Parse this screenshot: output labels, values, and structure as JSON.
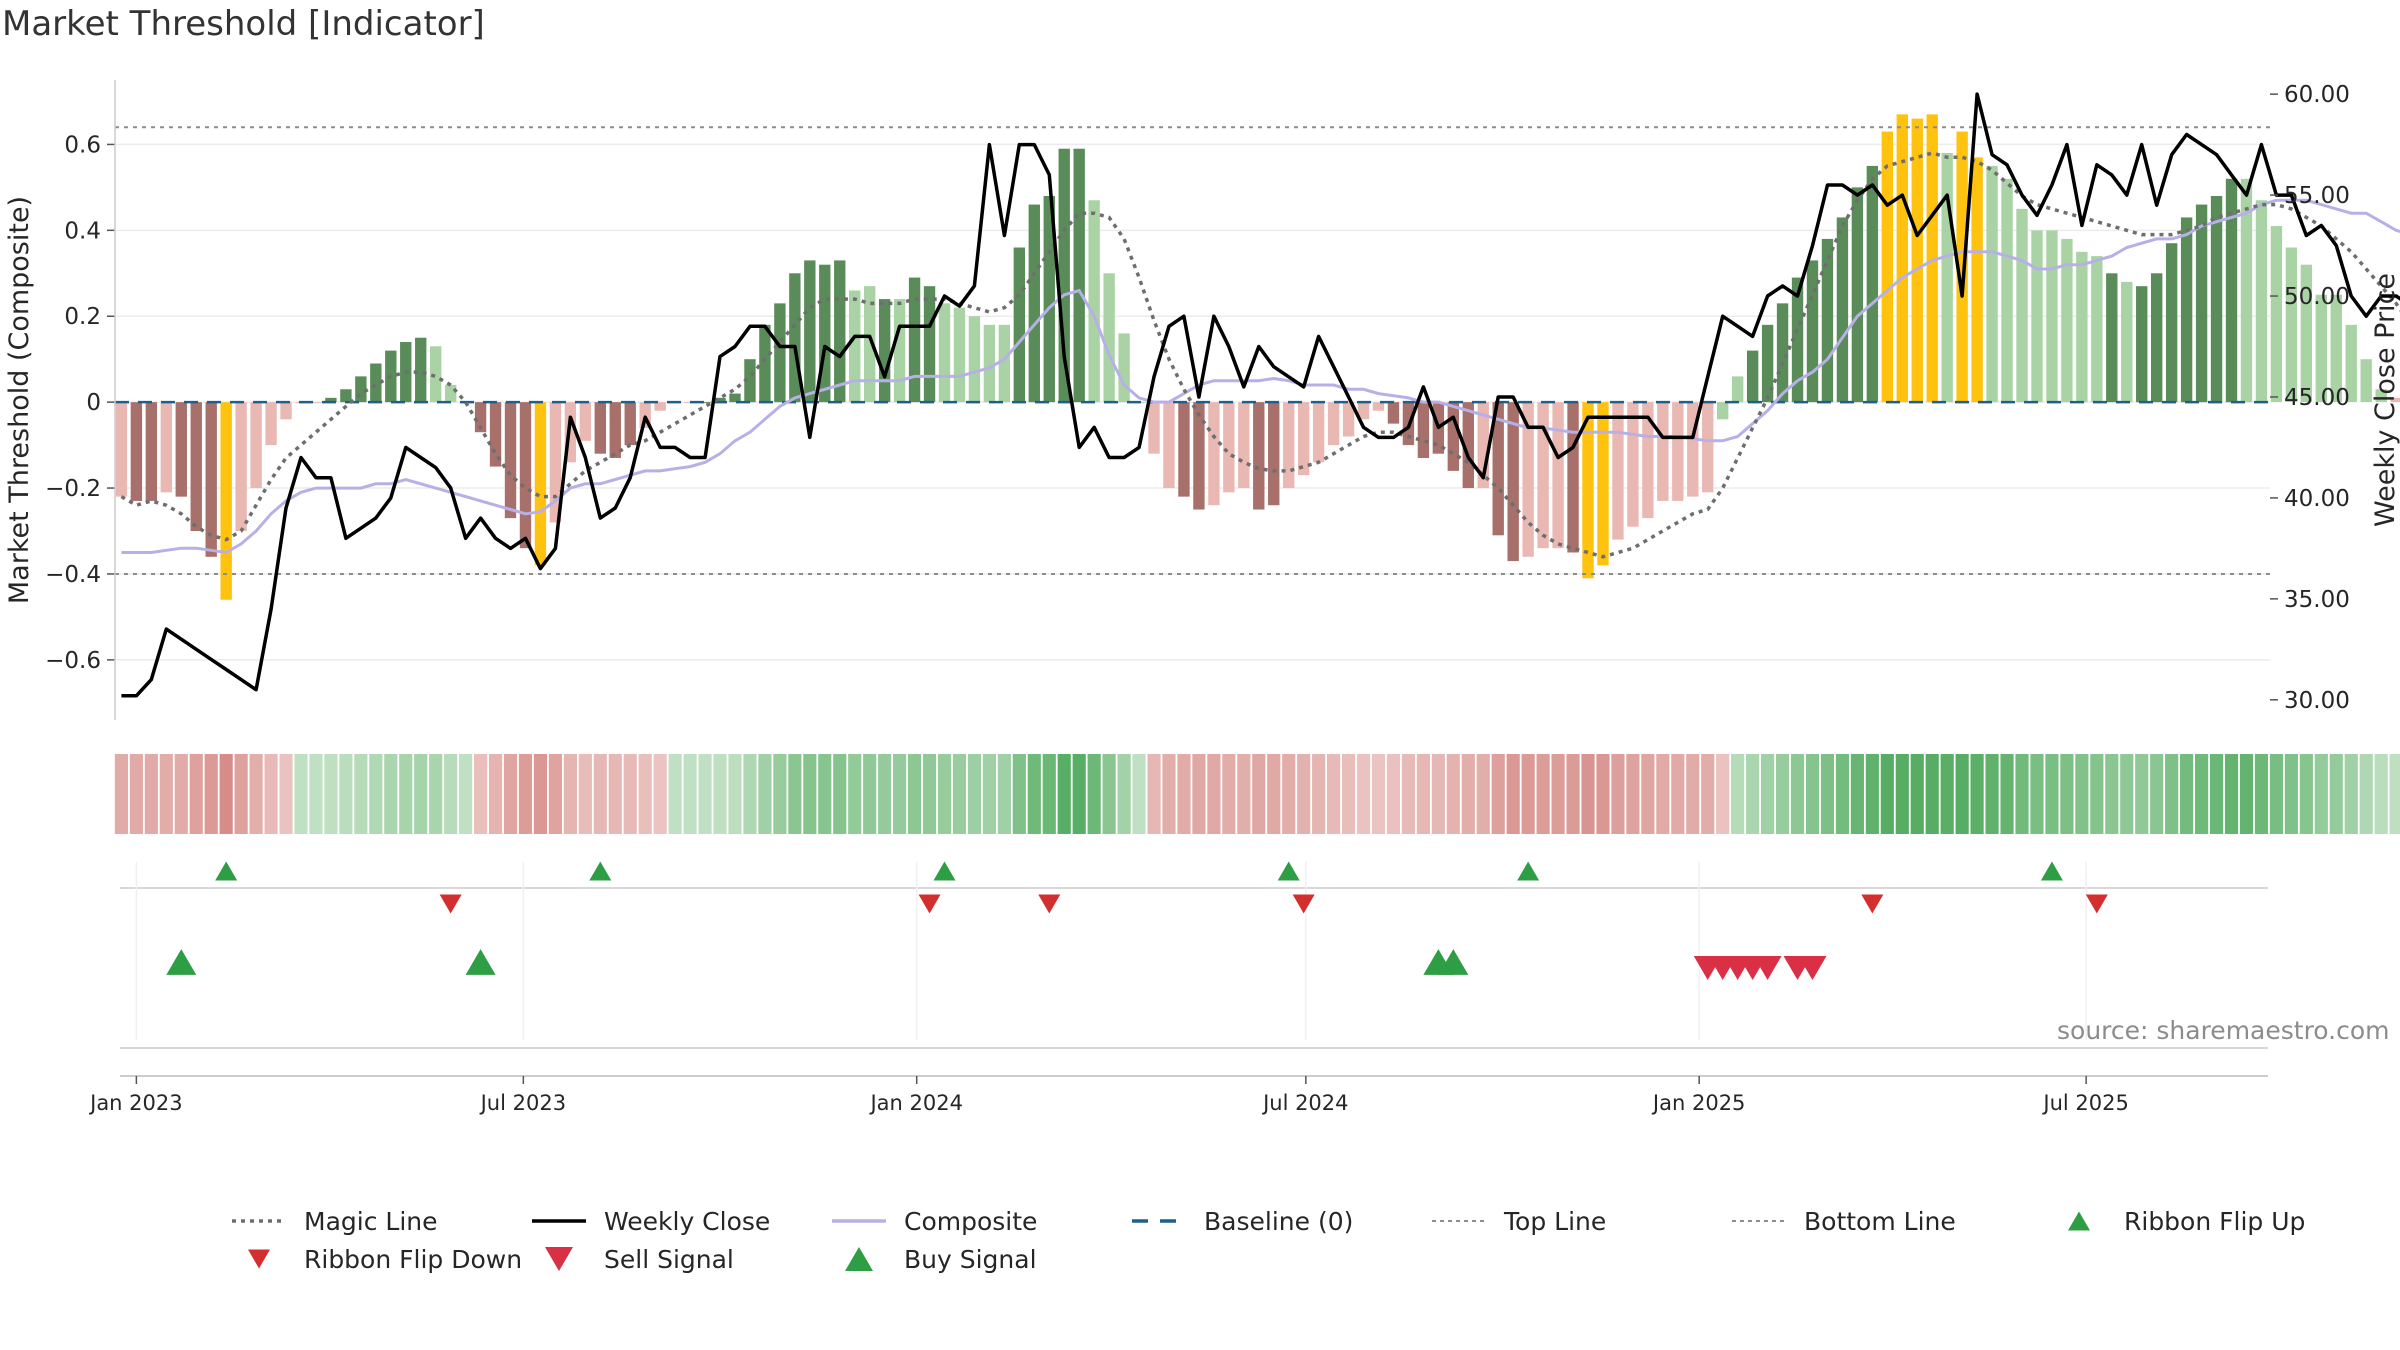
{
  "title": "Market Threshold [Indicator]",
  "source": "source: sharemaestro.com",
  "colors": {
    "magic": "#6e6e6e",
    "close": "#000000",
    "composite": "#b7b0e6",
    "baseline": "#1f5f8b",
    "threshold": "#8c8c8c",
    "bar_dark_green": "#5a8c5a",
    "bar_light_green": "#a9d3a4",
    "bar_dark_red": "#a8706a",
    "bar_light_red": "#eab8b3",
    "bar_yellow": "#ffc20e",
    "flip_up": "#2e9e44",
    "flip_down": "#d32f2f",
    "sell": "#d93045",
    "buy": "#2e9e44"
  },
  "chart_data": {
    "type": "bar",
    "title": "Market Threshold [Indicator]",
    "ylabel": "Market Threshold (Composite)",
    "y2label": "Weekly Close Price",
    "ylim": [
      -0.74,
      0.75
    ],
    "y2lim": [
      29,
      60.7
    ],
    "yticks": [
      -0.6,
      -0.4,
      -0.2,
      0,
      0.2,
      0.4,
      0.6
    ],
    "ytick_labels": [
      "−0.6",
      "−0.4",
      "−0.2",
      "0",
      "0.2",
      "0.4",
      "0.6"
    ],
    "y2ticks": [
      30,
      35,
      40,
      45,
      50,
      55,
      60
    ],
    "y2tick_labels": [
      "30.00",
      "35.00",
      "40.00",
      "45.00",
      "50.00",
      "55.00",
      "60.00"
    ],
    "top_line": 0.64,
    "bottom_line": -0.4,
    "xlim": [
      "2022-12-22",
      "2025-09-25"
    ],
    "xticks": [
      "2023-01-01",
      "2023-07-01",
      "2024-01-01",
      "2024-07-01",
      "2025-01-01",
      "2025-07-01"
    ],
    "xtick_labels": [
      "Jan 2023",
      "Jul 2023",
      "Jan 2024",
      "Jul 2024",
      "Jan 2025",
      "Jul 2025"
    ],
    "week_start": "2022-12-25",
    "composite_bars": [
      -0.22,
      -0.23,
      -0.23,
      -0.21,
      -0.22,
      -0.3,
      -0.36,
      -0.46,
      -0.3,
      -0.2,
      -0.1,
      -0.04,
      0,
      0,
      0.01,
      0.03,
      0.06,
      0.09,
      0.12,
      0.14,
      0.15,
      0.13,
      0.04,
      0,
      -0.07,
      -0.15,
      -0.27,
      -0.34,
      -0.38,
      -0.28,
      -0.14,
      -0.09,
      -0.12,
      -0.13,
      -0.1,
      -0.06,
      -0.02,
      0,
      0,
      0,
      0.01,
      0.02,
      0.1,
      0.18,
      0.23,
      0.3,
      0.33,
      0.32,
      0.33,
      0.26,
      0.27,
      0.24,
      0.24,
      0.29,
      0.27,
      0.23,
      0.22,
      0.2,
      0.18,
      0.18,
      0.36,
      0.46,
      0.48,
      0.59,
      0.59,
      0.47,
      0.3,
      0.16,
      0,
      -0.12,
      -0.2,
      -0.22,
      -0.25,
      -0.24,
      -0.21,
      -0.2,
      -0.25,
      -0.24,
      -0.2,
      -0.17,
      -0.14,
      -0.1,
      -0.08,
      -0.04,
      -0.02,
      -0.05,
      -0.1,
      -0.13,
      -0.12,
      -0.16,
      -0.2,
      -0.2,
      -0.31,
      -0.37,
      -0.36,
      -0.34,
      -0.34,
      -0.35,
      -0.41,
      -0.38,
      -0.32,
      -0.29,
      -0.27,
      -0.23,
      -0.23,
      -0.22,
      -0.21,
      -0.04,
      0.06,
      0.12,
      0.18,
      0.23,
      0.29,
      0.33,
      0.38,
      0.43,
      0.5,
      0.55,
      0.63,
      0.67,
      0.66,
      0.67,
      0.58,
      0.63,
      0.57,
      0.55,
      0.52,
      0.45,
      0.4,
      0.4,
      0.38,
      0.35,
      0.34,
      0.3,
      0.28,
      0.27,
      0.3,
      0.37,
      0.43,
      0.46,
      0.48,
      0.52,
      0.52,
      0.47,
      0.41,
      0.36,
      0.32,
      0.25,
      0.25,
      0.18,
      0.1,
      0.03,
      0.01,
      -0.06,
      -0.11,
      -0.16,
      -0.22
    ],
    "bar_tones": [
      "lr",
      "dr",
      "dr",
      "lr",
      "dr",
      "dr",
      "dr",
      "y",
      "lr",
      "lr",
      "lr",
      "lr",
      "lr",
      "lr",
      "dg",
      "dg",
      "dg",
      "dg",
      "dg",
      "dg",
      "dg",
      "lg",
      "lg",
      "lg",
      "dr",
      "dr",
      "dr",
      "dr",
      "y",
      "lr",
      "lr",
      "lr",
      "dr",
      "dr",
      "dr",
      "lr",
      "lr",
      "lr",
      "lr",
      "dg",
      "dg",
      "dg",
      "dg",
      "dg",
      "dg",
      "dg",
      "dg",
      "dg",
      "dg",
      "lg",
      "lg",
      "dg",
      "lg",
      "dg",
      "dg",
      "lg",
      "lg",
      "lg",
      "lg",
      "lg",
      "dg",
      "dg",
      "dg",
      "dg",
      "dg",
      "lg",
      "lg",
      "lg",
      "lg",
      "lr",
      "lr",
      "dr",
      "dr",
      "lr",
      "lr",
      "lr",
      "dr",
      "dr",
      "lr",
      "lr",
      "lr",
      "lr",
      "lr",
      "lr",
      "lr",
      "dr",
      "dr",
      "dr",
      "dr",
      "dr",
      "dr",
      "lr",
      "dr",
      "dr",
      "lr",
      "lr",
      "lr",
      "dr",
      "y",
      "y",
      "lr",
      "lr",
      "lr",
      "lr",
      "lr",
      "lr",
      "lr",
      "lg",
      "lg",
      "dg",
      "dg",
      "dg",
      "dg",
      "dg",
      "dg",
      "dg",
      "dg",
      "dg",
      "y",
      "y",
      "y",
      "y",
      "lg",
      "y",
      "y",
      "lg",
      "lg",
      "lg",
      "lg",
      "lg",
      "lg",
      "lg",
      "lg",
      "dg",
      "lg",
      "dg",
      "dg",
      "dg",
      "dg",
      "dg",
      "dg",
      "dg",
      "lg",
      "lg",
      "lg",
      "lg",
      "lg",
      "lg",
      "lg",
      "lg",
      "lg",
      "lg",
      "lr",
      "dr",
      "dr",
      "dr"
    ],
    "weekly_close": [
      30.2,
      30.2,
      31,
      33.5,
      33,
      32.5,
      32,
      31.5,
      31,
      30.5,
      34.5,
      39.5,
      42,
      41,
      41,
      38,
      38.5,
      39,
      40,
      42.5,
      42,
      41.5,
      40.5,
      38,
      39,
      38,
      37.5,
      38,
      36.5,
      37.5,
      44,
      42,
      39,
      39.5,
      41,
      44,
      42.5,
      42.5,
      42,
      42,
      47,
      47.5,
      48.5,
      48.5,
      47.5,
      47.5,
      43,
      47.5,
      47,
      48,
      48,
      46,
      48.5,
      48.5,
      48.5,
      50,
      49.5,
      50.5,
      57.5,
      53,
      57.5,
      57.5,
      56,
      47,
      42.5,
      43.5,
      42,
      42,
      42.5,
      46,
      48.5,
      49,
      45,
      49,
      47.5,
      45.5,
      47.5,
      46.5,
      46,
      45.5,
      48,
      46.5,
      45,
      43.5,
      43,
      43,
      43.5,
      45.5,
      43.5,
      44,
      42,
      41,
      45,
      45,
      43.5,
      43.5,
      42,
      42.5,
      44,
      44,
      44,
      44,
      44,
      43,
      43,
      43,
      46,
      49,
      48.5,
      48,
      50,
      50.5,
      50,
      52.5,
      55.5,
      55.5,
      55,
      55.5,
      54.5,
      55,
      53,
      54,
      55,
      50,
      60,
      57,
      56.5,
      55,
      54,
      55.5,
      57.5,
      53.5,
      56.5,
      56,
      55,
      57.5,
      54.5,
      57,
      58,
      57.5,
      57,
      56,
      55,
      57.5,
      55,
      55,
      53,
      53.5,
      52.5,
      50,
      49,
      50,
      50,
      49.5
    ],
    "composite_line": [
      -0.35,
      -0.35,
      -0.35,
      -0.345,
      -0.34,
      -0.34,
      -0.345,
      -0.35,
      -0.33,
      -0.3,
      -0.26,
      -0.23,
      -0.21,
      -0.2,
      -0.2,
      -0.2,
      -0.2,
      -0.19,
      -0.19,
      -0.18,
      -0.19,
      -0.2,
      -0.21,
      -0.22,
      -0.23,
      -0.24,
      -0.25,
      -0.26,
      -0.255,
      -0.23,
      -0.2,
      -0.19,
      -0.19,
      -0.18,
      -0.17,
      -0.16,
      -0.16,
      -0.155,
      -0.15,
      -0.14,
      -0.12,
      -0.09,
      -0.07,
      -0.04,
      -0.01,
      0.01,
      0.02,
      0.03,
      0.04,
      0.05,
      0.05,
      0.05,
      0.05,
      0.06,
      0.06,
      0.06,
      0.06,
      0.07,
      0.08,
      0.1,
      0.14,
      0.18,
      0.22,
      0.25,
      0.26,
      0.2,
      0.11,
      0.04,
      0.01,
      0,
      0,
      0.02,
      0.04,
      0.05,
      0.05,
      0.05,
      0.05,
      0.055,
      0.05,
      0.04,
      0.04,
      0.04,
      0.03,
      0.03,
      0.02,
      0.015,
      0.01,
      0,
      0,
      -0.01,
      -0.02,
      -0.03,
      -0.04,
      -0.05,
      -0.06,
      -0.06,
      -0.065,
      -0.07,
      -0.07,
      -0.07,
      -0.07,
      -0.075,
      -0.08,
      -0.08,
      -0.08,
      -0.085,
      -0.09,
      -0.09,
      -0.08,
      -0.05,
      -0.02,
      0.02,
      0.05,
      0.07,
      0.1,
      0.15,
      0.2,
      0.23,
      0.26,
      0.29,
      0.31,
      0.33,
      0.34,
      0.35,
      0.35,
      0.35,
      0.34,
      0.33,
      0.31,
      0.31,
      0.32,
      0.32,
      0.33,
      0.34,
      0.36,
      0.37,
      0.38,
      0.38,
      0.39,
      0.41,
      0.42,
      0.43,
      0.44,
      0.46,
      0.47,
      0.47,
      0.47,
      0.46,
      0.45,
      0.44,
      0.44,
      0.42,
      0.4,
      0.39,
      0.38,
      0.36,
      0.33,
      0.31,
      0.3
    ],
    "magic_line": [
      -0.22,
      -0.24,
      -0.23,
      -0.24,
      -0.26,
      -0.29,
      -0.31,
      -0.32,
      -0.3,
      -0.24,
      -0.18,
      -0.13,
      -0.1,
      -0.07,
      -0.04,
      -0.01,
      0.02,
      0.04,
      0.06,
      0.07,
      0.07,
      0.06,
      0.04,
      0,
      -0.06,
      -0.12,
      -0.17,
      -0.2,
      -0.22,
      -0.22,
      -0.19,
      -0.16,
      -0.14,
      -0.12,
      -0.1,
      -0.09,
      -0.07,
      -0.05,
      -0.03,
      -0.01,
      0.01,
      0.03,
      0.06,
      0.1,
      0.14,
      0.18,
      0.22,
      0.24,
      0.24,
      0.24,
      0.23,
      0.23,
      0.23,
      0.24,
      0.24,
      0.24,
      0.23,
      0.22,
      0.21,
      0.22,
      0.25,
      0.3,
      0.35,
      0.4,
      0.44,
      0.44,
      0.43,
      0.38,
      0.29,
      0.19,
      0.1,
      0.03,
      -0.03,
      -0.08,
      -0.12,
      -0.14,
      -0.155,
      -0.16,
      -0.16,
      -0.15,
      -0.14,
      -0.12,
      -0.1,
      -0.08,
      -0.07,
      -0.07,
      -0.08,
      -0.09,
      -0.1,
      -0.12,
      -0.14,
      -0.17,
      -0.2,
      -0.24,
      -0.28,
      -0.31,
      -0.33,
      -0.34,
      -0.35,
      -0.36,
      -0.35,
      -0.34,
      -0.32,
      -0.3,
      -0.28,
      -0.26,
      -0.25,
      -0.2,
      -0.13,
      -0.06,
      0.01,
      0.09,
      0.17,
      0.25,
      0.33,
      0.41,
      0.47,
      0.52,
      0.55,
      0.56,
      0.57,
      0.58,
      0.57,
      0.57,
      0.56,
      0.54,
      0.51,
      0.48,
      0.46,
      0.45,
      0.44,
      0.43,
      0.42,
      0.41,
      0.4,
      0.39,
      0.39,
      0.39,
      0.4,
      0.41,
      0.43,
      0.44,
      0.45,
      0.46,
      0.46,
      0.45,
      0.43,
      0.41,
      0.38,
      0.35,
      0.31,
      0.27,
      0.23,
      0.18,
      0.13,
      0.08,
      0.04,
      0.01,
      0
    ],
    "ribbon_tones": [
      -0.25,
      -0.28,
      -0.28,
      -0.3,
      -0.35,
      -0.38,
      -0.4,
      -0.5,
      -0.45,
      -0.4,
      -0.5,
      -0.55,
      -0.55,
      -0.5,
      -0.55,
      -0.55,
      -0.55,
      -0.55,
      -0.55,
      -0.55,
      -0.55,
      -0.55,
      -0.5,
      -0.5,
      -0.5,
      -0.5,
      -0.5,
      -0.5,
      -0.5,
      -0.5,
      -0.35,
      -0.4,
      -0.45,
      -0.4,
      -0.4,
      -0.45,
      -0.45,
      -0.4,
      -0.4,
      -0.4,
      -0.3,
      -0.4,
      -0.45,
      -0.45,
      -0.45,
      -0.45,
      -0.45,
      -0.45,
      -0.45,
      -0.45,
      -0.45,
      -0.45,
      -0.45,
      -0.45,
      -0.45,
      -0.45,
      -0.45,
      -0.45,
      -0.45,
      -0.45,
      -0.45,
      -0.45,
      -0.45,
      -0.45,
      -0.45,
      -0.45,
      -0.45,
      -0.45,
      -0.45,
      -0.45,
      -0.45,
      -0.45,
      -0.45,
      -0.45,
      -0.45,
      -0.45,
      -0.45,
      -0.45,
      -0.45,
      -0.45,
      -0.45,
      -0.45,
      -0.45,
      -0.45,
      -0.45,
      -0.45,
      -0.45,
      -0.45,
      -0.45,
      -0.45,
      -0.45,
      -0.45,
      -0.45,
      -0.45,
      -0.45,
      -0.45,
      -0.45,
      -0.45,
      -0.45,
      -0.45,
      -0.45,
      -0.45,
      -0.45,
      -0.45,
      -0.45,
      -0.45,
      -0.45,
      -0.45,
      -0.45,
      -0.45,
      -0.45,
      -0.45,
      -0.45,
      -0.45,
      -0.45,
      -0.45,
      -0.45,
      -0.45,
      -0.45,
      -0.45,
      -0.45,
      -0.45,
      -0.45,
      -0.45,
      -0.45,
      -0.45,
      -0.45,
      -0.45,
      -0.45,
      -0.45,
      -0.45,
      -0.45,
      -0.45,
      -0.45,
      -0.45,
      -0.45,
      -0.45,
      -0.45,
      -0.45,
      -0.45,
      -0.45,
      -0.45,
      -0.45,
      -0.45,
      -0.45,
      -0.45,
      -0.45,
      -0.45,
      -0.45,
      -0.45,
      -0.45,
      -0.45,
      -0.45,
      -0.45,
      -0.45,
      -0.45,
      -0.45,
      -0.45,
      -0.45,
      -0.45,
      -0.45,
      -0.45
    ],
    "ribbon_flip_up": [
      "2023-02-12",
      "2023-08-06",
      "2024-01-14",
      "2024-06-23",
      "2024-10-13",
      "2025-06-15"
    ],
    "ribbon_flip_down": [
      "2023-05-28",
      "2024-01-07",
      "2024-03-03",
      "2024-06-30",
      "2025-03-23",
      "2025-07-06"
    ],
    "buy_signals": [
      "2023-01-22",
      "2023-06-11",
      "2024-09-01",
      "2024-09-08"
    ],
    "sell_signals": [
      "2025-01-05",
      "2025-01-12",
      "2025-01-19",
      "2025-01-26",
      "2025-02-02",
      "2025-02-16",
      "2025-02-23"
    ],
    "legend": [
      {
        "label": "Magic Line",
        "symbol": "dotted",
        "color": "#6e6e6e"
      },
      {
        "label": "Weekly Close",
        "symbol": "solid",
        "color": "#000000"
      },
      {
        "label": "Composite",
        "symbol": "solid",
        "color": "#b7b0e6"
      },
      {
        "label": "Baseline (0)",
        "symbol": "dashed",
        "color": "#1f5f8b"
      },
      {
        "label": "Top Line",
        "symbol": "dotted-light",
        "color": "#8c8c8c"
      },
      {
        "label": "Bottom Line",
        "symbol": "dotted-light",
        "color": "#8c8c8c"
      },
      {
        "label": "Ribbon Flip Up",
        "symbol": "tri-up-small",
        "color": "#2e9e44"
      },
      {
        "label": "Ribbon Flip Down",
        "symbol": "tri-down-small",
        "color": "#d32f2f"
      },
      {
        "label": "Sell Signal",
        "symbol": "tri-down",
        "color": "#d93045"
      },
      {
        "label": "Buy Signal",
        "symbol": "tri-up",
        "color": "#2e9e44"
      }
    ]
  }
}
